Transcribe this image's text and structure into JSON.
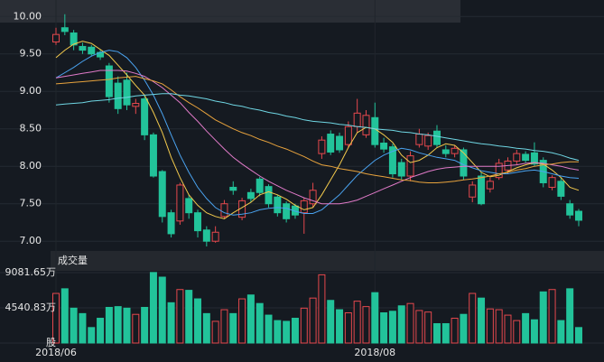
{
  "chart_data": {
    "type": "candlestick",
    "up_color": "#e5484d",
    "down_color": "#22c39a",
    "grid": true,
    "categories": [
      "2018/06",
      null,
      null,
      null,
      null,
      null,
      null,
      null,
      null,
      null,
      null,
      null,
      null,
      null,
      null,
      null,
      null,
      null,
      null,
      null,
      null,
      null,
      null,
      null,
      null,
      null,
      null,
      null,
      null,
      null,
      null,
      null,
      null,
      null,
      null,
      null,
      "2018/08",
      null,
      null,
      null,
      null,
      null,
      null,
      null,
      null,
      null,
      null,
      null,
      null,
      null,
      null,
      null,
      null,
      null,
      null,
      null,
      null,
      null,
      null,
      null
    ],
    "open": [
      9.66,
      9.85,
      9.78,
      9.6,
      9.59,
      9.52,
      9.34,
      9.11,
      9.15,
      8.8,
      8.9,
      8.42,
      7.93,
      7.38,
      7.27,
      7.57,
      7.38,
      7.15,
      7.0,
      7.33,
      7.72,
      7.32,
      7.65,
      7.83,
      7.73,
      7.59,
      7.5,
      7.47,
      7.38,
      7.5,
      8.17,
      8.43,
      8.4,
      8.29,
      8.53,
      8.42,
      8.65,
      8.31,
      8.26,
      8.05,
      7.87,
      8.29,
      8.27,
      8.47,
      8.22,
      8.17,
      8.22,
      7.59,
      7.87,
      7.7,
      7.85,
      7.95,
      8.07,
      8.16,
      8.18,
      8.08,
      7.72,
      7.8,
      7.5,
      7.4
    ],
    "high": [
      9.85,
      10.03,
      9.82,
      9.65,
      9.62,
      9.55,
      9.38,
      9.2,
      9.25,
      8.9,
      8.95,
      8.45,
      7.95,
      7.42,
      7.78,
      7.62,
      7.42,
      7.2,
      7.2,
      7.55,
      7.8,
      7.58,
      7.7,
      7.86,
      7.76,
      7.62,
      7.53,
      7.5,
      7.58,
      7.78,
      8.4,
      8.48,
      8.45,
      8.6,
      8.9,
      8.75,
      8.85,
      8.38,
      8.3,
      8.1,
      8.2,
      8.5,
      8.45,
      8.55,
      8.28,
      8.28,
      8.25,
      7.8,
      7.92,
      7.85,
      8.1,
      8.12,
      8.22,
      8.2,
      8.32,
      8.12,
      7.88,
      7.85,
      7.55,
      7.43
    ],
    "low": [
      9.62,
      9.75,
      9.55,
      9.5,
      9.47,
      9.42,
      8.85,
      8.7,
      8.75,
      8.7,
      8.35,
      7.85,
      7.25,
      7.05,
      7.22,
      7.3,
      7.05,
      6.93,
      6.98,
      7.3,
      7.62,
      7.28,
      7.52,
      7.6,
      7.45,
      7.33,
      7.25,
      7.3,
      7.1,
      7.45,
      8.1,
      8.15,
      8.18,
      8.25,
      8.45,
      8.38,
      8.25,
      8.18,
      7.85,
      7.82,
      7.8,
      8.25,
      8.22,
      8.25,
      8.12,
      8.12,
      7.82,
      7.52,
      7.48,
      7.65,
      7.82,
      7.9,
      8.02,
      8.05,
      8.0,
      7.72,
      7.68,
      7.55,
      7.3,
      7.2
    ],
    "close": [
      9.76,
      9.8,
      9.62,
      9.55,
      9.5,
      9.46,
      8.93,
      8.77,
      8.82,
      8.84,
      8.42,
      7.87,
      7.33,
      7.1,
      7.75,
      7.38,
      7.14,
      7.0,
      7.12,
      7.5,
      7.68,
      7.54,
      7.57,
      7.65,
      7.5,
      7.38,
      7.3,
      7.35,
      7.54,
      7.68,
      8.35,
      8.19,
      8.22,
      8.53,
      8.71,
      8.68,
      8.29,
      8.23,
      7.9,
      7.87,
      8.14,
      8.43,
      8.41,
      8.29,
      8.17,
      8.24,
      7.87,
      7.75,
      7.5,
      7.8,
      8.04,
      8.07,
      8.17,
      8.08,
      8.03,
      7.78,
      7.85,
      7.6,
      7.35,
      7.28
    ],
    "ma": [
      {
        "color": "#f2c94c",
        "values": [
          9.45,
          9.55,
          9.63,
          9.67,
          9.64,
          9.56,
          9.48,
          9.35,
          9.22,
          9.08,
          8.95,
          8.72,
          8.45,
          8.12,
          7.85,
          7.62,
          7.48,
          7.38,
          7.33,
          7.3,
          7.38,
          7.45,
          7.52,
          7.62,
          7.66,
          7.62,
          7.56,
          7.48,
          7.42,
          7.45,
          7.62,
          7.82,
          8.02,
          8.25,
          8.45,
          8.52,
          8.5,
          8.42,
          8.32,
          8.15,
          8.05,
          8.08,
          8.15,
          8.25,
          8.3,
          8.28,
          8.18,
          8.05,
          7.92,
          7.86,
          7.88,
          7.93,
          7.98,
          8.02,
          8.05,
          8.03,
          7.95,
          7.85,
          7.72,
          7.68
        ]
      },
      {
        "color": "#4aa3f0",
        "values": [
          9.18,
          9.25,
          9.32,
          9.4,
          9.47,
          9.52,
          9.55,
          9.53,
          9.45,
          9.32,
          9.15,
          8.95,
          8.7,
          8.42,
          8.15,
          7.92,
          7.72,
          7.57,
          7.45,
          7.38,
          7.35,
          7.36,
          7.38,
          7.42,
          7.44,
          7.45,
          7.44,
          7.4,
          7.37,
          7.37,
          7.42,
          7.52,
          7.62,
          7.75,
          7.88,
          7.98,
          8.08,
          8.15,
          8.2,
          8.24,
          8.22,
          8.18,
          8.15,
          8.12,
          8.1,
          8.08,
          8.02,
          7.98,
          7.94,
          7.92,
          7.9,
          7.9,
          7.92,
          7.94,
          7.95,
          7.93,
          7.9,
          7.87,
          7.85,
          7.84
        ]
      },
      {
        "color": "#e07ac8",
        "values": [
          9.18,
          9.2,
          9.22,
          9.24,
          9.26,
          9.28,
          9.28,
          9.28,
          9.27,
          9.24,
          9.2,
          9.13,
          9.05,
          8.95,
          8.85,
          8.72,
          8.6,
          8.47,
          8.35,
          8.23,
          8.12,
          8.03,
          7.95,
          7.87,
          7.8,
          7.74,
          7.68,
          7.63,
          7.58,
          7.54,
          7.5,
          7.5,
          7.5,
          7.52,
          7.55,
          7.6,
          7.65,
          7.7,
          7.75,
          7.8,
          7.85,
          7.89,
          7.93,
          7.96,
          7.98,
          7.99,
          8.0,
          8.0,
          8.0,
          8.0,
          8.0,
          8.01,
          8.02,
          8.04,
          8.05,
          8.04,
          8.02,
          8.0,
          7.97,
          7.95
        ]
      },
      {
        "color": "#e8a33d",
        "values": [
          9.1,
          9.11,
          9.12,
          9.13,
          9.14,
          9.15,
          9.16,
          9.18,
          9.19,
          9.2,
          9.17,
          9.14,
          9.1,
          9.02,
          8.93,
          8.85,
          8.78,
          8.7,
          8.62,
          8.56,
          8.5,
          8.45,
          8.41,
          8.36,
          8.32,
          8.27,
          8.23,
          8.18,
          8.13,
          8.07,
          8.02,
          8.0,
          7.97,
          7.95,
          7.93,
          7.9,
          7.88,
          7.86,
          7.84,
          7.82,
          7.81,
          7.79,
          7.78,
          7.78,
          7.79,
          7.8,
          7.82,
          7.83,
          7.85,
          7.87,
          7.9,
          7.92,
          7.95,
          7.97,
          8.0,
          8.02,
          8.03,
          8.05,
          8.06,
          8.06
        ]
      },
      {
        "color": "#6fd6e3",
        "values": [
          8.82,
          8.83,
          8.84,
          8.85,
          8.87,
          8.88,
          8.89,
          8.91,
          8.92,
          8.94,
          8.95,
          8.96,
          8.97,
          8.97,
          8.95,
          8.94,
          8.92,
          8.9,
          8.87,
          8.85,
          8.82,
          8.8,
          8.77,
          8.75,
          8.72,
          8.7,
          8.67,
          8.65,
          8.62,
          8.6,
          8.59,
          8.58,
          8.56,
          8.55,
          8.53,
          8.52,
          8.5,
          8.49,
          8.48,
          8.46,
          8.45,
          8.43,
          8.42,
          8.4,
          8.38,
          8.36,
          8.34,
          8.32,
          8.3,
          8.29,
          8.27,
          8.26,
          8.24,
          8.23,
          8.21,
          8.2,
          8.18,
          8.15,
          8.11,
          8.08
        ]
      }
    ],
    "ylim": [
      6.87,
      10.22
    ],
    "yticks": [
      {
        "value": 7,
        "label": "7.00"
      },
      {
        "value": 7.5,
        "label": "7.50"
      },
      {
        "value": 8,
        "label": "8.00"
      },
      {
        "value": 8.5,
        "label": "8.50"
      },
      {
        "value": 9,
        "label": "9.00"
      },
      {
        "value": 9.5,
        "label": "9.50"
      },
      {
        "value": 10,
        "label": "10.00"
      }
    ],
    "volume": {
      "title": "成交量",
      "values": [
        6400,
        7000,
        4500,
        3800,
        2000,
        3200,
        4600,
        4700,
        4500,
        3700,
        4600,
        9100,
        8500,
        5200,
        6900,
        6800,
        5700,
        3800,
        2800,
        4300,
        3800,
        5700,
        6200,
        5100,
        3600,
        2900,
        2800,
        3200,
        4500,
        5800,
        8800,
        5500,
        4300,
        3900,
        5400,
        4700,
        6500,
        3900,
        4100,
        4800,
        5100,
        4200,
        4000,
        2500,
        2500,
        3200,
        3700,
        6400,
        5800,
        4400,
        4300,
        3600,
        2900,
        3800,
        3000,
        6600,
        6900,
        2900,
        7000,
        2000
      ],
      "ylim": [
        0,
        9314
      ],
      "yticks": [
        {
          "value": 0,
          "label": "股"
        },
        {
          "value": 4540.83,
          "label": "4540.83万"
        },
        {
          "value": 9081.65,
          "label": "9081.65万"
        }
      ]
    }
  }
}
